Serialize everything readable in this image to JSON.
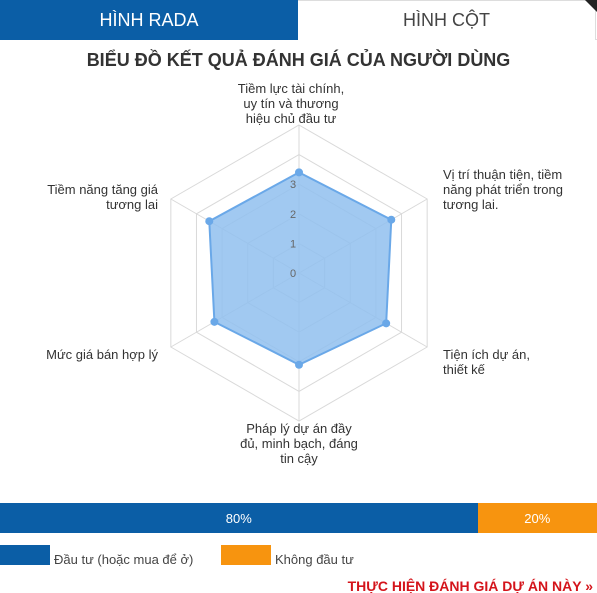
{
  "tabs": [
    {
      "label": "HÌNH RADA",
      "active": true
    },
    {
      "label": "HÌNH CỘT",
      "active": false
    }
  ],
  "title": "BIỂU ĐỒ KẾT QUẢ ĐÁNH GIÁ CỦA NGƯỜI DÙNG",
  "chart_data": {
    "type": "radar",
    "axes": [
      "Tiềm lực tài chính, uy tín và thương hiệu chủ đầu tư",
      "Vị trí thuận tiện, tiềm năng phát triển trong tương lai.",
      "Tiện ích dự án, thiết kế",
      "Pháp lý dự án đầy đủ, minh bạch, đáng tin cậy",
      "Mức giá bán hợp lý",
      "Tiềm năng tăng giá tương lai"
    ],
    "tick_labels": [
      "0",
      "1",
      "2",
      "3"
    ],
    "rlim": [
      0,
      5
    ],
    "values": [
      3.4,
      3.6,
      3.4,
      3.1,
      3.3,
      3.5
    ],
    "fill_color": "#90bfef",
    "line_color": "#6aa8e8",
    "grid": true
  },
  "distribution": {
    "segments": [
      {
        "label": "80%",
        "value": 80,
        "color": "#0b5ea6"
      },
      {
        "label": "20%",
        "value": 20,
        "color": "#f7940f"
      }
    ]
  },
  "legend": [
    {
      "label": "Đầu tư (hoặc mua để ở)",
      "color": "#0b5ea6"
    },
    {
      "label": "Không đầu tư",
      "color": "#f7940f"
    }
  ],
  "cta": "THỰC HIỆN ĐÁNH GIÁ DỰ ÁN NÀY »"
}
